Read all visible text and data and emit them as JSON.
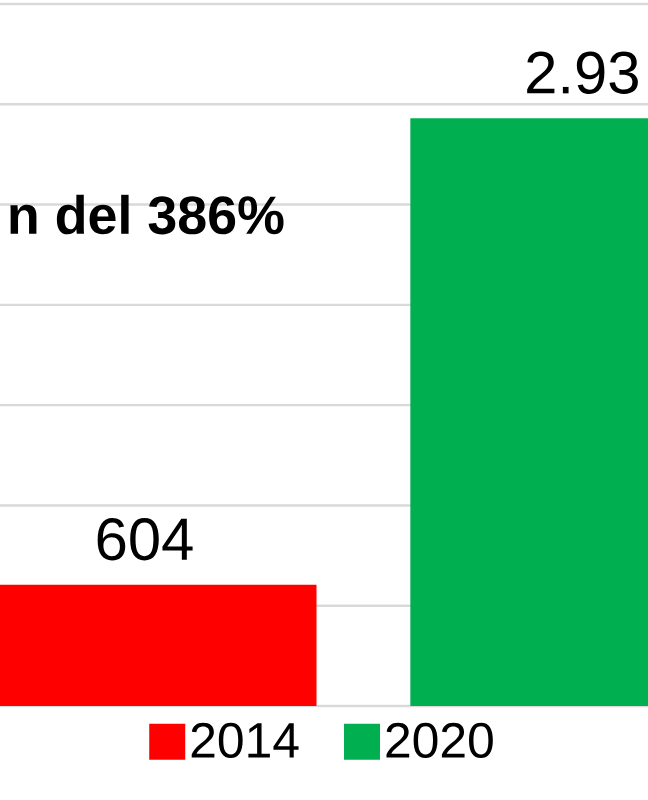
{
  "chart_data": {
    "type": "bar",
    "categories": [
      null
    ],
    "series": [
      {
        "name": "2014",
        "color": "#ff0000",
        "values": [
          604
        ],
        "value_labels": [
          "604"
        ]
      },
      {
        "name": "2020",
        "color": "#00b050",
        "values": [
          2930
        ]
      }
    ],
    "ylim": [
      0,
      3500
    ],
    "yticks": [
      {
        "value": 0,
        "label": null
      },
      {
        "value": 500,
        "label": null
      },
      {
        "value": 1000,
        "label": null
      },
      {
        "value": 1500,
        "label": null
      },
      {
        "value": 2000,
        "label": null
      },
      {
        "value": 2500,
        "label": null
      },
      {
        "value": 3000,
        "label": null
      },
      {
        "value": 3500,
        "label": null
      }
    ],
    "grid": "y",
    "legend": "bottom",
    "annotations": [
      "n del 386%",
      {
        "text": "2.93",
        "y": 2930
      }
    ]
  }
}
